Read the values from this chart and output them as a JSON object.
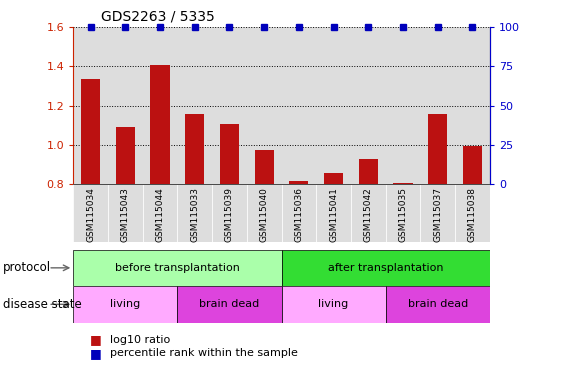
{
  "title": "GDS2263 / 5335",
  "samples": [
    "GSM115034",
    "GSM115043",
    "GSM115044",
    "GSM115033",
    "GSM115039",
    "GSM115040",
    "GSM115036",
    "GSM115041",
    "GSM115042",
    "GSM115035",
    "GSM115037",
    "GSM115038"
  ],
  "log10_ratio": [
    1.335,
    1.09,
    1.405,
    1.155,
    1.105,
    0.975,
    0.815,
    0.855,
    0.93,
    0.805,
    1.155,
    0.995
  ],
  "ylim_left": [
    0.8,
    1.6
  ],
  "ylim_right": [
    0,
    100
  ],
  "yticks_left": [
    0.8,
    1.0,
    1.2,
    1.4,
    1.6
  ],
  "yticks_right": [
    0,
    25,
    50,
    75,
    100
  ],
  "bar_color": "#bb1111",
  "dot_color": "#0000bb",
  "dot_value": 100,
  "protocol_groups": [
    {
      "label": "before transplantation",
      "start": 0,
      "end": 6,
      "color": "#aaffaa"
    },
    {
      "label": "after transplantation",
      "start": 6,
      "end": 12,
      "color": "#33dd33"
    }
  ],
  "disease_groups": [
    {
      "label": "living",
      "start": 0,
      "end": 3,
      "color": "#ffaaff"
    },
    {
      "label": "brain dead",
      "start": 3,
      "end": 6,
      "color": "#dd44dd"
    },
    {
      "label": "living",
      "start": 6,
      "end": 9,
      "color": "#ffaaff"
    },
    {
      "label": "brain dead",
      "start": 9,
      "end": 12,
      "color": "#dd44dd"
    }
  ],
  "legend_items": [
    {
      "label": "log10 ratio",
      "color": "#bb1111"
    },
    {
      "label": "percentile rank within the sample",
      "color": "#0000bb"
    }
  ],
  "bg_color": "#ffffff",
  "tick_color_left": "#cc2200",
  "tick_color_right": "#0000cc",
  "col_bg": "#dddddd",
  "n_samples": 12
}
